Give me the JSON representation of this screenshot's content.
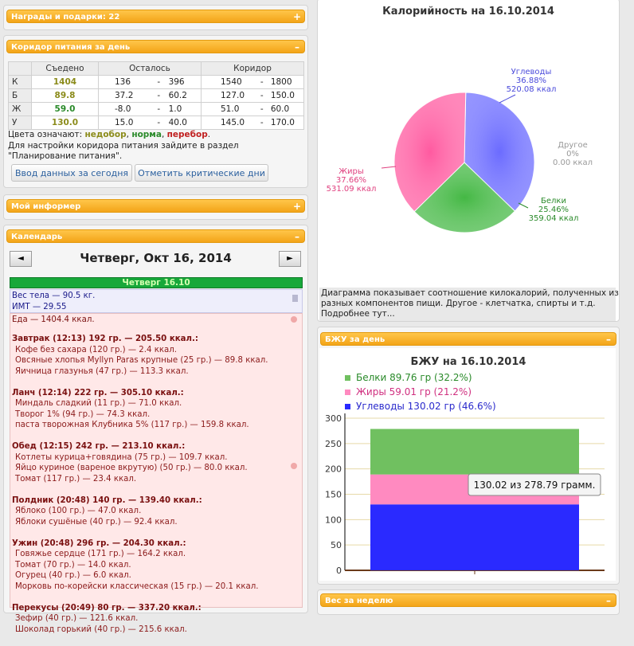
{
  "awards": {
    "title": "Награды и подарки: 22",
    "toggle": "+"
  },
  "corridor": {
    "title": "Коридор питания за день",
    "toggle": "–",
    "headers": [
      "",
      "Съедено",
      "Осталось",
      "Коридор"
    ],
    "rows": [
      {
        "label": "К",
        "eaten": "1404",
        "eaten_color": "#8b8b1a",
        "left_from": "136",
        "left_to": "396",
        "cor_from": "1540",
        "cor_to": "1800"
      },
      {
        "label": "Б",
        "eaten": "89.8",
        "eaten_color": "#8b8b1a",
        "left_from": "37.2",
        "left_to": "60.2",
        "cor_from": "127.0",
        "cor_to": "150.0"
      },
      {
        "label": "Ж",
        "eaten": "59.0",
        "eaten_color": "#2a8a2a",
        "left_from": "-8.0",
        "left_to": "1.0",
        "cor_from": "51.0",
        "cor_to": "60.0"
      },
      {
        "label": "У",
        "eaten": "130.0",
        "eaten_color": "#8b8b1a",
        "left_from": "15.0",
        "left_to": "40.0",
        "cor_from": "145.0",
        "cor_to": "170.0"
      }
    ],
    "dash": "-",
    "legend_prefix": "Цвета означают:",
    "legend_under": "недобор",
    "legend_norm": "норма",
    "legend_over": "перебор",
    "comma": ",",
    "dot": ".",
    "hint_line1": "Для настройки коридора питания зайдите в раздел",
    "hint_line2": "\"Планирование питания\".",
    "btn_today": "Ввод данных за сегодня",
    "btn_critical": "Отметить критические дни",
    "colors": {
      "under": "#8b8b1a",
      "norm": "#2a8a2a",
      "over": "#c02020"
    }
  },
  "informer": {
    "title": "Мой информер",
    "toggle": "+"
  },
  "calendar": {
    "title": "Календарь",
    "toggle": "–",
    "prev": "◄",
    "next": "►",
    "date_title": "Четверг, Окт 16, 2014",
    "day_label": "Четверг 16.10",
    "weight": "Вес тела — 90.5 кг.",
    "bmi": "ИМТ — 29.55",
    "food_total": "Еда — 1404.4 ккал.",
    "meals": [
      {
        "title": "Завтрак (12:13) 192 гр. — 205.50 ккал.:",
        "items": [
          "Кофе без сахара (120 гр.) — 2.4 ккал.",
          "Овсяные хлопья Myllyn Paras крупные (25 гр.) — 89.8 ккал.",
          "Яичница глазунья (47 гр.) — 113.3 ккал."
        ]
      },
      {
        "title": "Ланч (12:14) 222 гр. — 305.10 ккал.:",
        "items": [
          "Миндаль сладкий (11 гр.) — 71.0 ккал.",
          "Творог 1% (94 гр.) — 74.3 ккал.",
          "паста творожная Клубника 5% (117 гр.) — 159.8 ккал."
        ]
      },
      {
        "title": "Обед (12:15) 242 гр. — 213.10 ккал.:",
        "items": [
          "Котлеты курица+говядина (75 гр.) — 109.7 ккал.",
          "Яйцо куриное (вареное вкрутую) (50 гр.) — 80.0 ккал.",
          "Томат (117 гр.) — 23.4 ккал."
        ]
      },
      {
        "title": "Полдник (20:48) 140 гр. — 139.40 ккал.:",
        "items": [
          "Яблоко (100 гр.) — 47.0 ккал.",
          "Яблоки сушёные (40 гр.) — 92.4 ккал."
        ]
      },
      {
        "title": "Ужин (20:48) 296 гр. — 204.30 ккал.:",
        "items": [
          "Говяжье сердце (171 гр.) — 164.2 ккал.",
          "Томат (70 гр.) — 14.0 ккал.",
          "Огурец (40 гр.) — 6.0 ккал.",
          "Морковь по-корейски классическая (15 гр.) — 20.1 ккал."
        ]
      },
      {
        "title": "Перекусы (20:49) 80 гр. — 337.20 ккал.:",
        "items": [
          "Зефир (40 гр.) — 121.6 ккал.",
          "Шоколад горький (40 гр.) — 215.6 ккал."
        ]
      }
    ]
  },
  "calories_chart": {
    "title": "Калорийность на 16.10.2014",
    "slices": [
      {
        "name": "Углеводы",
        "pct_label": "36.88%",
        "kcal_label": "520.08 ккал",
        "value": 36.88,
        "color": "#6b6bff",
        "label_color": "#4a4adb"
      },
      {
        "name": "Белки",
        "pct_label": "25.46%",
        "kcal_label": "359.04 ккал",
        "value": 25.46,
        "color": "#44b844",
        "label_color": "#2a8a2a"
      },
      {
        "name": "Жиры",
        "pct_label": "37.66%",
        "kcal_label": "531.09 ккал",
        "value": 37.66,
        "color": "#ff5aa0",
        "label_color": "#e0407f"
      },
      {
        "name": "Другое",
        "pct_label": "0%",
        "kcal_label": "0.00 ккал",
        "value": 0,
        "color": "#999999",
        "label_color": "#999999"
      }
    ],
    "caption_line1": "Диаграмма показывает соотношение килокалорий, полученных из",
    "caption_line2": "разных компонентов пищи. Другое - клетчатка, спирты и т.д.",
    "caption_line3": "Подробнее тут..."
  },
  "bju_panel": {
    "title": "БЖУ за день",
    "toggle": "–"
  },
  "chart_data": {
    "type": "bar",
    "title": "БЖУ на 16.10.2014",
    "categories": [
      ""
    ],
    "stacked": true,
    "ylim": [
      0,
      300
    ],
    "yticks": [
      "0",
      "50",
      "100",
      "150",
      "200",
      "250",
      "300"
    ],
    "series": [
      {
        "name": "Углеводы",
        "legend": "Углеводы 130.02 гр (46.6%)",
        "values": [
          130.02
        ],
        "color": "#2a2aff",
        "text_color": "#2a2acc"
      },
      {
        "name": "Жиры",
        "legend": "Жиры 59.01 гр (21.2%)",
        "values": [
          59.01
        ],
        "color": "#ff8ac0",
        "text_color": "#d03080"
      },
      {
        "name": "Белки",
        "legend": "Белки 89.76 гр (32.2%)",
        "values": [
          89.76
        ],
        "color": "#70c060",
        "text_color": "#2a8a2a"
      }
    ],
    "tooltip": "130.02 из 278.79 грамм.",
    "grid": "horizontal",
    "legend_position": "top-left"
  },
  "weight_panel": {
    "title": "Вес за неделю",
    "toggle": "–"
  }
}
